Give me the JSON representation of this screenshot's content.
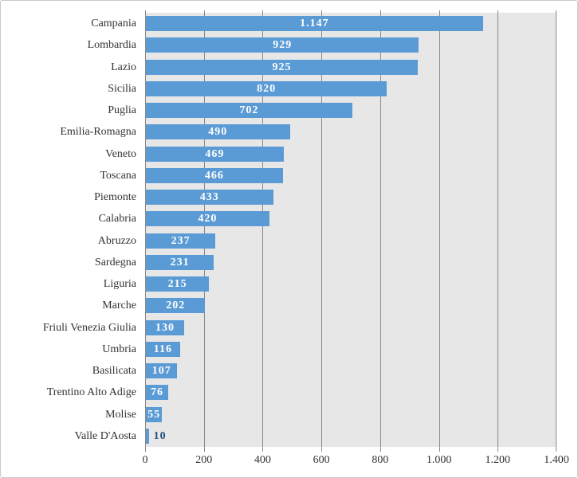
{
  "window": {
    "background": "#ffffff",
    "border_color": "#c9c9c9"
  },
  "chart_data": {
    "type": "bar",
    "orientation": "horizontal",
    "title": "",
    "xlabel": "",
    "ylabel": "",
    "legend": false,
    "grid": true,
    "xlim": [
      0,
      1400
    ],
    "categories": [
      "Campania",
      "Lombardia",
      "Lazio",
      "Sicilia",
      "Puglia",
      "Emilia-Romagna",
      "Veneto",
      "Toscana",
      "Piemonte",
      "Calabria",
      "Abruzzo",
      "Sardegna",
      "Liguria",
      "Marche",
      "Friuli Venezia Giulia",
      "Umbria",
      "Basilicata",
      "Trentino Alto Adige",
      "Molise",
      "Valle D'Aosta"
    ],
    "values": [
      1147,
      929,
      925,
      820,
      702,
      490,
      469,
      466,
      433,
      420,
      237,
      231,
      215,
      202,
      130,
      116,
      107,
      76,
      55,
      10
    ],
    "value_labels": [
      "1.147",
      "929",
      "925",
      "820",
      "702",
      "490",
      "469",
      "466",
      "433",
      "420",
      "237",
      "231",
      "215",
      "202",
      "130",
      "116",
      "107",
      "76",
      "55",
      "10"
    ],
    "x_tick_labels": [
      "0",
      "200",
      "400",
      "600",
      "800",
      "1.000",
      "1.200",
      "1.400"
    ],
    "x_tick_values": [
      0,
      200,
      400,
      600,
      800,
      1000,
      1200,
      1400
    ],
    "colors": {
      "bar": "#5B9BD5",
      "plot_background": "#e7e7e7",
      "gridline": "#898989",
      "category_label": "#333333",
      "axis_label": "#333333",
      "value_label_inside": "#ffffff",
      "value_label_outside": "#1f4e79"
    }
  }
}
